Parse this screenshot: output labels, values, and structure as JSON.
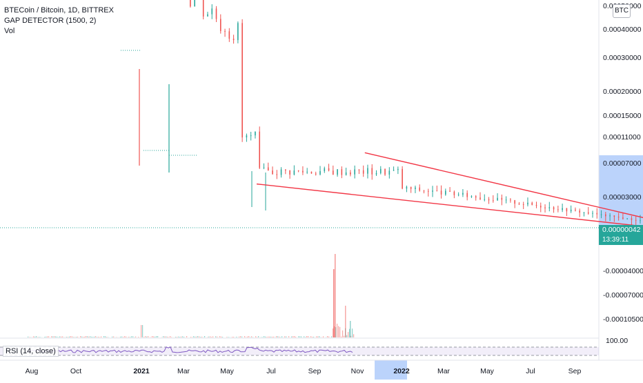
{
  "header": {
    "title": "BTECoin / Bitcoin, 1D, BITTREX",
    "indicator": "GAP DETECTOR (1500, 2)",
    "volume_label": "Vol",
    "currency": "BTC"
  },
  "rsi_label": "RSI (14, close)",
  "price_tag": {
    "value": "0.00000042",
    "countdown": "13:39:11"
  },
  "colors": {
    "up": "#26a69a",
    "down": "#ef5350",
    "trendline": "#f23645",
    "rsi": "#7e57c2",
    "highlight": "#bbd3fb"
  },
  "chart_data": [
    {
      "type": "candlestick",
      "title": "BTECoin / Bitcoin, 1D, BITTREX",
      "y_ticks": [
        "0.00050000",
        "0.00040000",
        "0.00030000",
        "0.00020000",
        "0.00015000",
        "0.00011000",
        "0.00007000",
        "0.00003000",
        "-0.00004000",
        "-0.00007000",
        "-0.00010500"
      ],
      "x_ticks": [
        "Aug",
        "Oct",
        "2021",
        "Mar",
        "May",
        "Jul",
        "Sep",
        "Nov",
        "2022",
        "Mar",
        "May",
        "Jul",
        "Sep"
      ],
      "last_price": 4.2e-07,
      "drawings": [
        {
          "name": "upper-trendline",
          "from": [
            "2021-03-20",
            8.2e-05
          ],
          "to": [
            "2021-10-28",
            4e-07
          ]
        },
        {
          "name": "lower-trendline",
          "from": [
            "2021-01-04",
            4.5e-05
          ],
          "to": [
            "2021-11-03",
            -4e-06
          ]
        }
      ]
    },
    {
      "type": "bar",
      "name": "Vol",
      "spike_month": "2021-10"
    },
    {
      "type": "line",
      "name": "RSI (14, close)",
      "ylim": [
        0,
        100
      ],
      "y_ticks": [
        "100.00"
      ],
      "bands": [
        30,
        70
      ]
    }
  ]
}
